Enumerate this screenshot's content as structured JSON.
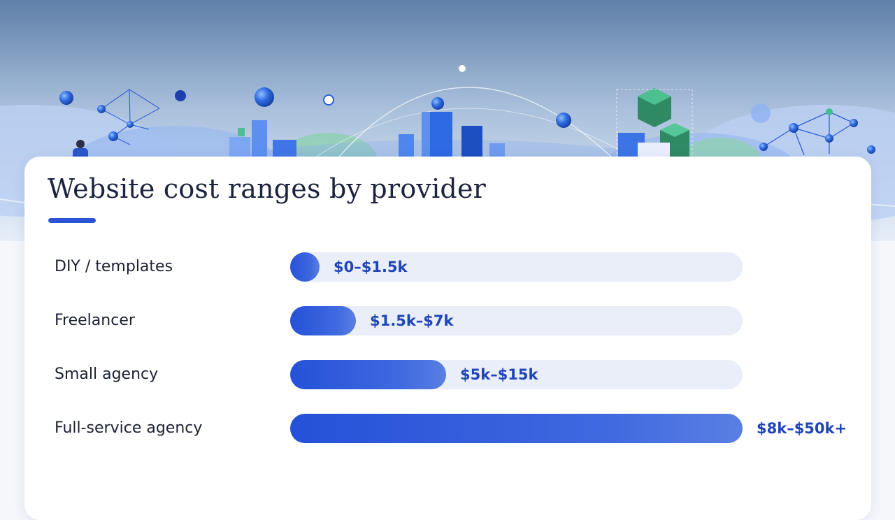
{
  "chart_data": {
    "type": "bar",
    "orientation": "horizontal",
    "title": "Website cost ranges by provider",
    "xlim": [
      0,
      50
    ],
    "units": "thousand USD",
    "categories": [
      "DIY / templates",
      "Freelancer",
      "Small agency",
      "Full-service agency"
    ],
    "range_low": [
      0,
      1.5,
      5,
      8
    ],
    "range_high": [
      1.5,
      7,
      15,
      50
    ],
    "value_labels": [
      "$0–$1.5k",
      "$1.5k–$7k",
      "$5k–$15k",
      "$8k–$50k+"
    ],
    "fill_fraction": [
      0.065,
      0.145,
      0.345,
      1.0
    ],
    "grid": false,
    "legend": "none"
  },
  "colors": {
    "accent": "#2b55d6",
    "bar_start": "#2451d8",
    "bar_end": "#5a7fe3",
    "track": "#eaeef9",
    "value_text": "#1f45b8",
    "label_text": "#1b2033",
    "card": "#ffffff",
    "sky_top": "#5f7fa8",
    "sky_bottom": "#e6eef8",
    "cube_green": "#3a9a74"
  },
  "decoration": {
    "hero_icons": [
      "network-node-icon",
      "sphere-icon",
      "cube-icon",
      "building-bar-icon",
      "person-icon"
    ]
  }
}
